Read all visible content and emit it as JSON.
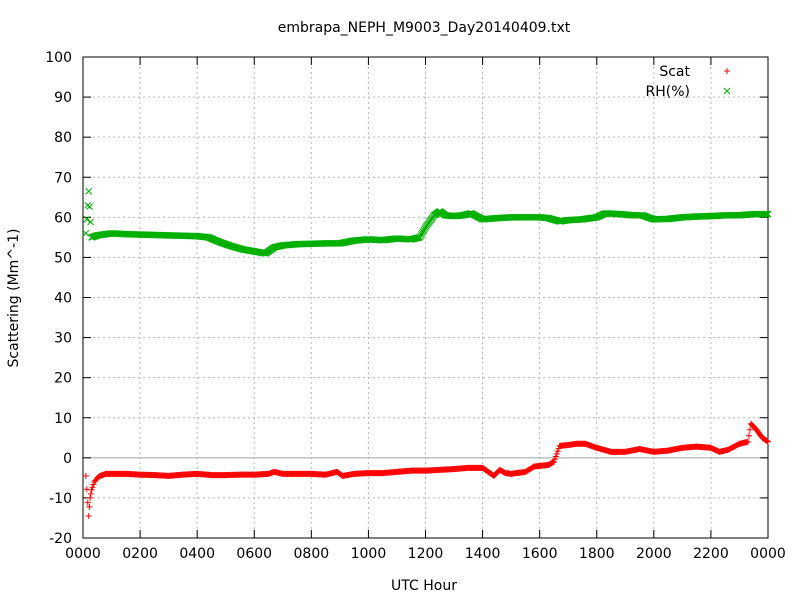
{
  "chart_data": {
    "type": "scatter",
    "title": "embrapa_NEPH_M9003_Day20140409.txt",
    "xlabel": "UTC Hour",
    "ylabel": "Scattering (Mm^-1)",
    "xlim": [
      0,
      24
    ],
    "ylim": [
      -20,
      100
    ],
    "grid": true,
    "zero_line": true,
    "legend_position": "top-right",
    "x_tick_values": [
      0,
      2,
      4,
      6,
      8,
      10,
      12,
      14,
      16,
      18,
      20,
      22,
      24
    ],
    "x_tick_labels": [
      "0000",
      "0200",
      "0400",
      "0600",
      "0800",
      "1000",
      "1200",
      "1400",
      "1600",
      "1800",
      "2000",
      "2200",
      "0000"
    ],
    "y_ticks": [
      -20,
      -10,
      0,
      10,
      20,
      30,
      40,
      50,
      60,
      70,
      80,
      90,
      100
    ],
    "series": [
      {
        "name": "Scat",
        "marker": "+",
        "color": "#ff0000",
        "points": [
          [
            0.1,
            -4.5
          ],
          [
            0.2,
            -14.5
          ],
          [
            0.25,
            -10
          ],
          [
            0.3,
            -8
          ],
          [
            0.4,
            -6
          ],
          [
            0.5,
            -5
          ],
          [
            0.6,
            -4.5
          ],
          [
            0.8,
            -4
          ],
          [
            1.0,
            -4
          ],
          [
            1.5,
            -4
          ],
          [
            2.0,
            -4.2
          ],
          [
            2.5,
            -4.3
          ],
          [
            3.0,
            -4.5
          ],
          [
            3.5,
            -4.2
          ],
          [
            4.0,
            -4
          ],
          [
            4.5,
            -4.3
          ],
          [
            5.0,
            -4.3
          ],
          [
            5.5,
            -4.2
          ],
          [
            6.0,
            -4.2
          ],
          [
            6.5,
            -4
          ],
          [
            6.7,
            -3.5
          ],
          [
            7.0,
            -4
          ],
          [
            7.5,
            -4
          ],
          [
            8.0,
            -4
          ],
          [
            8.5,
            -4.2
          ],
          [
            8.9,
            -3.5
          ],
          [
            9.1,
            -4.5
          ],
          [
            9.5,
            -4
          ],
          [
            10.0,
            -3.8
          ],
          [
            10.5,
            -3.8
          ],
          [
            11.0,
            -3.5
          ],
          [
            11.5,
            -3.2
          ],
          [
            12.0,
            -3.2
          ],
          [
            12.5,
            -3
          ],
          [
            13.0,
            -2.8
          ],
          [
            13.5,
            -2.5
          ],
          [
            14.0,
            -2.5
          ],
          [
            14.2,
            -3.5
          ],
          [
            14.4,
            -4.5
          ],
          [
            14.6,
            -3
          ],
          [
            14.8,
            -3.8
          ],
          [
            15.0,
            -4
          ],
          [
            15.5,
            -3.5
          ],
          [
            15.8,
            -2.2
          ],
          [
            16.0,
            -2
          ],
          [
            16.3,
            -1.8
          ],
          [
            16.5,
            -1
          ],
          [
            16.6,
            1
          ],
          [
            16.7,
            3
          ],
          [
            17.0,
            3.2
          ],
          [
            17.3,
            3.5
          ],
          [
            17.6,
            3.5
          ],
          [
            17.8,
            3
          ],
          [
            18.0,
            2.5
          ],
          [
            18.5,
            1.5
          ],
          [
            19.0,
            1.5
          ],
          [
            19.5,
            2.2
          ],
          [
            20.0,
            1.5
          ],
          [
            20.5,
            1.8
          ],
          [
            21.0,
            2.5
          ],
          [
            21.5,
            2.8
          ],
          [
            22.0,
            2.5
          ],
          [
            22.3,
            1.5
          ],
          [
            22.6,
            2
          ],
          [
            23.0,
            3.5
          ],
          [
            23.3,
            4
          ],
          [
            23.4,
            8.5
          ],
          [
            23.6,
            7
          ],
          [
            23.8,
            5
          ],
          [
            24.0,
            4
          ]
        ]
      },
      {
        "name": "RH(%)",
        "marker": "x",
        "color": "#00b000",
        "points": [
          [
            0.1,
            56
          ],
          [
            0.2,
            66.5
          ],
          [
            0.3,
            55
          ],
          [
            0.5,
            55.5
          ],
          [
            1.0,
            56
          ],
          [
            1.5,
            55.8
          ],
          [
            2.0,
            55.7
          ],
          [
            2.5,
            55.6
          ],
          [
            3.0,
            55.5
          ],
          [
            3.5,
            55.4
          ],
          [
            4.0,
            55.3
          ],
          [
            4.4,
            55
          ],
          [
            4.8,
            53.8
          ],
          [
            5.2,
            52.8
          ],
          [
            5.6,
            52
          ],
          [
            6.0,
            51.5
          ],
          [
            6.4,
            51
          ],
          [
            6.7,
            52.5
          ],
          [
            7.0,
            53
          ],
          [
            7.5,
            53.3
          ],
          [
            8.0,
            53.4
          ],
          [
            8.5,
            53.5
          ],
          [
            9.0,
            53.5
          ],
          [
            9.5,
            54.2
          ],
          [
            10.0,
            54.5
          ],
          [
            10.5,
            54.3
          ],
          [
            11.0,
            54.7
          ],
          [
            11.5,
            54.5
          ],
          [
            11.8,
            55
          ],
          [
            12.0,
            57.5
          ],
          [
            12.3,
            60.5
          ],
          [
            12.5,
            61.5
          ],
          [
            12.7,
            60.5
          ],
          [
            13.0,
            60.3
          ],
          [
            13.3,
            60.5
          ],
          [
            13.6,
            61
          ],
          [
            14.0,
            59.5
          ],
          [
            14.5,
            59.8
          ],
          [
            15.0,
            60
          ],
          [
            15.5,
            60
          ],
          [
            16.0,
            60
          ],
          [
            16.3,
            59.8
          ],
          [
            16.7,
            59
          ],
          [
            17.0,
            59.3
          ],
          [
            17.5,
            59.5
          ],
          [
            18.0,
            60
          ],
          [
            18.3,
            61
          ],
          [
            18.8,
            60.8
          ],
          [
            19.3,
            60.5
          ],
          [
            19.6,
            60.5
          ],
          [
            20.0,
            59.5
          ],
          [
            20.5,
            59.6
          ],
          [
            21.0,
            60
          ],
          [
            21.5,
            60.2
          ],
          [
            22.0,
            60.3
          ],
          [
            22.5,
            60.5
          ],
          [
            23.0,
            60.5
          ],
          [
            23.5,
            60.8
          ],
          [
            24.0,
            60.8
          ]
        ]
      }
    ]
  }
}
